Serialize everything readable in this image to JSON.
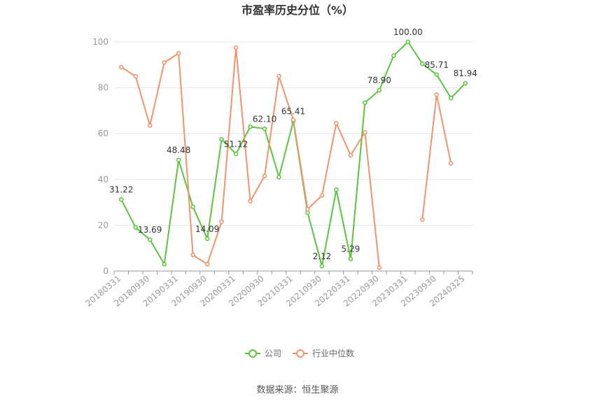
{
  "chart_data": {
    "type": "line",
    "title": "市盈率历史分位（%）",
    "ylim": [
      0,
      100
    ],
    "yticks": [
      0,
      20,
      40,
      60,
      80,
      100
    ],
    "x": [
      "20180331",
      "20180630",
      "20180930",
      "20181231",
      "20190331",
      "20190630",
      "20190930",
      "20191231",
      "20200331",
      "20200630",
      "20200930",
      "20201231",
      "20210331",
      "20210630",
      "20210930",
      "20211231",
      "20220331",
      "20220630",
      "20220930",
      "20221231",
      "20230331",
      "20230630",
      "20230930",
      "20231231",
      "20240325"
    ],
    "xtick_labels": [
      "20180331",
      "20180930",
      "20190331",
      "20190930",
      "20200331",
      "20200930",
      "20210331",
      "20210930",
      "20220331",
      "20220930",
      "20230331",
      "20230930",
      "20240325"
    ],
    "series": [
      {
        "name": "公司",
        "color": "#5ac43c",
        "values": [
          31.22,
          19,
          13.69,
          3,
          48.48,
          28,
          14.09,
          57.5,
          51.12,
          63,
          62.1,
          41,
          65.41,
          25.5,
          2.12,
          35.5,
          5.29,
          73.5,
          78.9,
          94,
          100.0,
          90.5,
          85.71,
          75.5,
          81.94
        ]
      },
      {
        "name": "行业中位数",
        "color": "#f0936a",
        "values": [
          89,
          85,
          63.5,
          91,
          95,
          7,
          3,
          21.5,
          97.5,
          30.5,
          41.5,
          85,
          66,
          27,
          33,
          64.5,
          50.5,
          60.5,
          1.5,
          null,
          null,
          22.5,
          77,
          47,
          null
        ]
      }
    ],
    "data_labels": [
      {
        "index": 0,
        "text": "31.22"
      },
      {
        "index": 2,
        "text": "13.69"
      },
      {
        "index": 4,
        "text": "48.48"
      },
      {
        "index": 6,
        "text": "14.09"
      },
      {
        "index": 8,
        "text": "51.12"
      },
      {
        "index": 10,
        "text": "62.10"
      },
      {
        "index": 12,
        "text": "65.41"
      },
      {
        "index": 14,
        "text": "2.12"
      },
      {
        "index": 16,
        "text": "5.29"
      },
      {
        "index": 18,
        "text": "78.90"
      },
      {
        "index": 20,
        "text": "100.00"
      },
      {
        "index": 22,
        "text": "85.71"
      },
      {
        "index": 24,
        "text": "81.94"
      }
    ],
    "grid": true,
    "legend_position": "bottom-center"
  },
  "source_text": "数据来源：恒生聚源"
}
